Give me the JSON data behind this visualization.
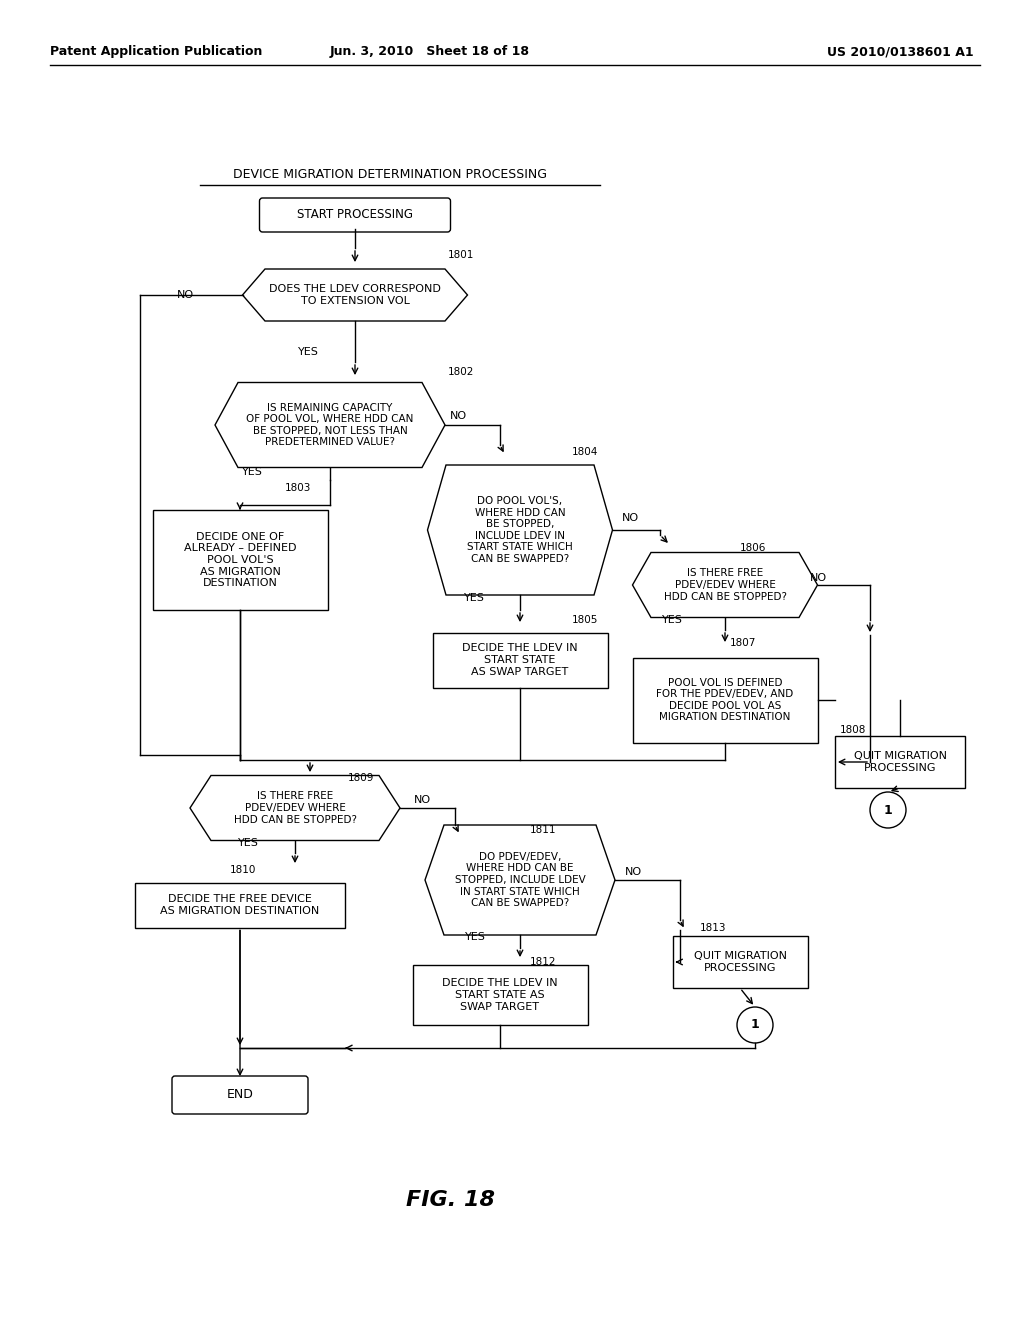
{
  "header_left": "Patent Application Publication",
  "header_center": "Jun. 3, 2010   Sheet 18 of 18",
  "header_right": "US 2010/0138601 A1",
  "title_text": "DEVICE MIGRATION DETERMINATION PROCESSING",
  "fig_label": "FIG. 18",
  "bg_color": "#ffffff"
}
